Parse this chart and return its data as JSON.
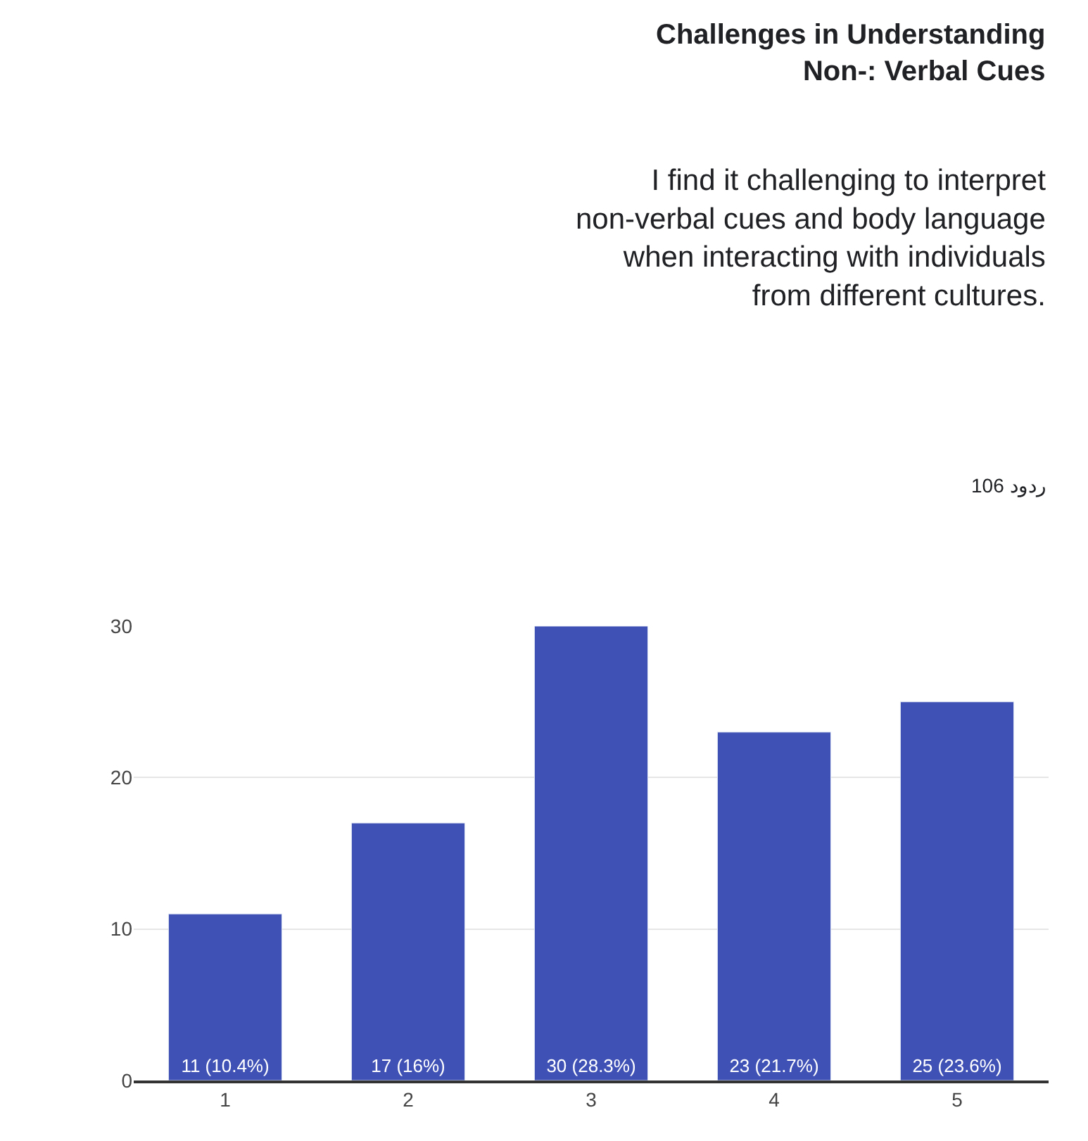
{
  "chart_data": {
    "type": "bar",
    "title": "Challenges in Understanding Non-: Verbal Cues",
    "subtitle": "I find it challenging to interpret non-verbal cues and body language when interacting with individuals from different cultures.",
    "annotations": [
      "106 ردود"
    ],
    "categories": [
      "1",
      "2",
      "3",
      "4",
      "5"
    ],
    "values": [
      11,
      17,
      30,
      23,
      25
    ],
    "value_labels": [
      "11 (10.4%)",
      "17 (16%)",
      "30 (28.3%)",
      "23 (21.7%)",
      "25 (23.6%)"
    ],
    "color": "#3f51b5",
    "ylim": [
      0,
      30
    ],
    "yticks": [
      0,
      10,
      20,
      30
    ],
    "grid": "y",
    "legend": false
  }
}
